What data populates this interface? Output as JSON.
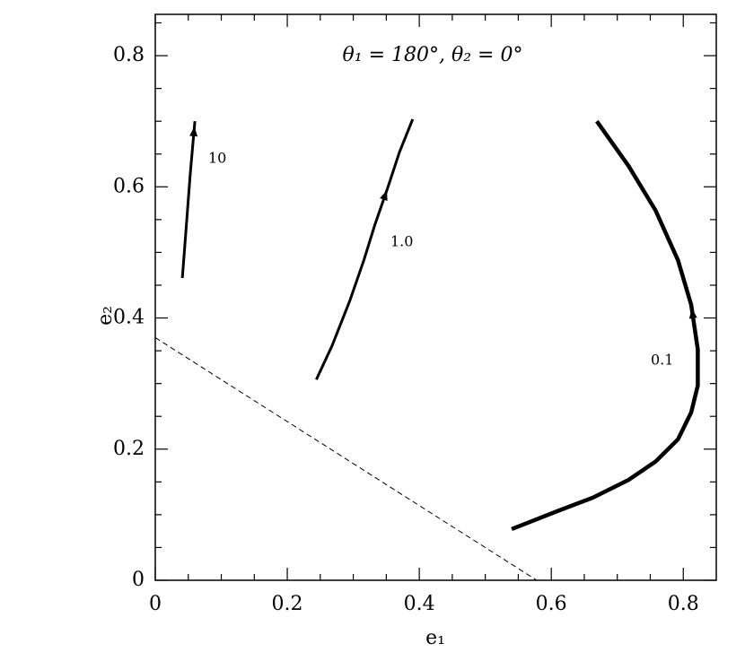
{
  "chart_data": {
    "type": "line",
    "title": "θ₁ = 180°, θ₂ = 0°",
    "x_label": "e₁",
    "y_label": "e₂",
    "xlim": [
      0,
      0.85
    ],
    "ylim": [
      0,
      0.863
    ],
    "xticks": [
      0,
      0.2,
      0.4,
      0.6,
      0.8
    ],
    "yticks": [
      0,
      0.2,
      0.4,
      0.6,
      0.8
    ],
    "xminorticks": [
      0.05,
      0.1,
      0.15,
      0.25,
      0.3,
      0.35,
      0.45,
      0.5,
      0.55,
      0.65,
      0.7,
      0.75
    ],
    "yminorticks": [
      0.05,
      0.1,
      0.15,
      0.25,
      0.3,
      0.35,
      0.45,
      0.5,
      0.55,
      0.65,
      0.7,
      0.75,
      0.85
    ],
    "series": [
      {
        "name": "10",
        "color": "#000000",
        "x": [
          0.041,
          0.047,
          0.053,
          0.06
        ],
        "y": [
          0.461,
          0.54,
          0.62,
          0.7
        ]
      },
      {
        "name": "1.0",
        "color": "#000000",
        "x": [
          0.244,
          0.268,
          0.295,
          0.316,
          0.333,
          0.352,
          0.37,
          0.39
        ],
        "y": [
          0.306,
          0.358,
          0.427,
          0.488,
          0.543,
          0.598,
          0.653,
          0.703
        ]
      },
      {
        "name": "0.1",
        "color": "#000000",
        "x": [
          0.54,
          0.608,
          0.663,
          0.717,
          0.758,
          0.792,
          0.812,
          0.822,
          0.822,
          0.812,
          0.792,
          0.758,
          0.717,
          0.669
        ],
        "y": [
          0.078,
          0.105,
          0.126,
          0.153,
          0.181,
          0.215,
          0.256,
          0.297,
          0.352,
          0.42,
          0.488,
          0.564,
          0.632,
          0.7
        ]
      }
    ],
    "reference_line": {
      "style": "dashed",
      "color": "#000000",
      "x": [
        0,
        0.578
      ],
      "y": [
        0.37,
        0
      ]
    }
  }
}
